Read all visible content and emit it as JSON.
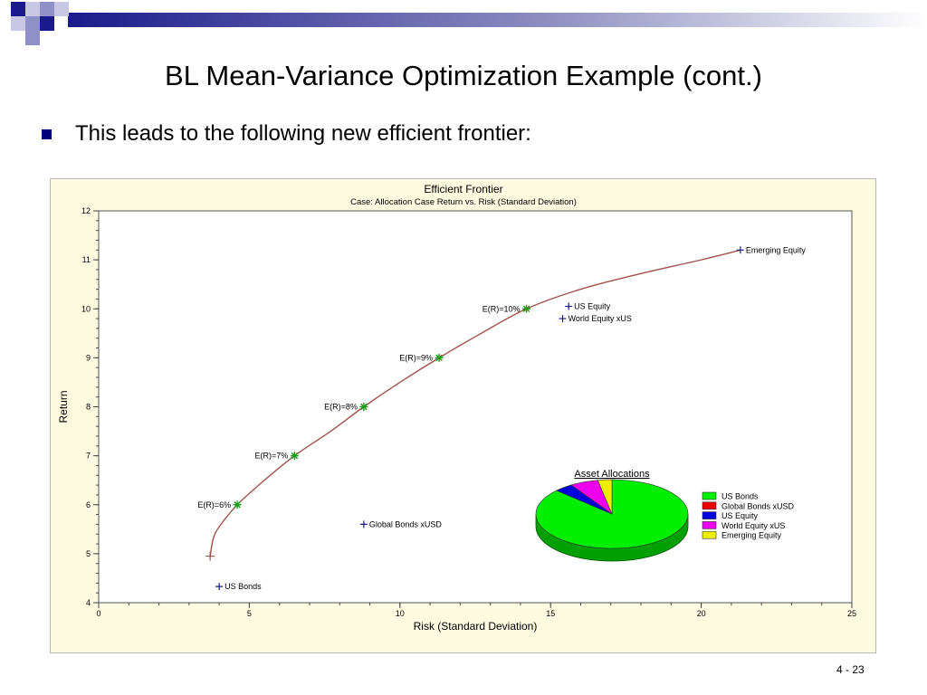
{
  "slide": {
    "title": "BL Mean-Variance Optimization Example (cont.)",
    "bullet": "This leads to the following new efficient frontier:",
    "page_number": "4 - 23"
  },
  "chart_data": {
    "type": "scatter",
    "title": "Efficient Frontier",
    "subtitle": "Case: Allocation Case     Return vs. Risk (Standard Deviation)",
    "xlabel": "Risk (Standard Deviation)",
    "ylabel": "Return",
    "xlim": [
      0,
      25
    ],
    "ylim": [
      4,
      12
    ],
    "x_ticks": [
      0,
      5,
      10,
      15,
      20,
      25
    ],
    "y_ticks": [
      4,
      5,
      6,
      7,
      8,
      9,
      10,
      11,
      12
    ],
    "frontier": {
      "color": "#a0524a",
      "points": [
        [
          3.7,
          4.95
        ],
        [
          3.8,
          5.3
        ],
        [
          4.0,
          5.55
        ],
        [
          4.6,
          6.0
        ],
        [
          5.5,
          6.5
        ],
        [
          6.5,
          7.0
        ],
        [
          7.7,
          7.5
        ],
        [
          8.8,
          8.0
        ],
        [
          10.0,
          8.5
        ],
        [
          11.3,
          9.0
        ],
        [
          12.7,
          9.5
        ],
        [
          14.2,
          10.0
        ],
        [
          16.0,
          10.4
        ],
        [
          18.0,
          10.72
        ],
        [
          20.0,
          11.0
        ],
        [
          21.3,
          11.2
        ]
      ]
    },
    "target_points": [
      {
        "label": "E(R)=6%",
        "x": 4.6,
        "y": 6.0
      },
      {
        "label": "E(R)=7%",
        "x": 6.5,
        "y": 7.0
      },
      {
        "label": "E(R)=8%",
        "x": 8.8,
        "y": 8.0
      },
      {
        "label": "E(R)=9%",
        "x": 11.3,
        "y": 9.0
      },
      {
        "label": "E(R)=10%",
        "x": 14.2,
        "y": 10.0
      }
    ],
    "assets": [
      {
        "label": "US Bonds",
        "x": 4.0,
        "y": 4.33
      },
      {
        "label": "Global Bonds xUSD",
        "x": 8.8,
        "y": 5.6
      },
      {
        "label": "US Equity",
        "x": 15.6,
        "y": 10.05
      },
      {
        "label": "World Equity xUS",
        "x": 15.4,
        "y": 9.8
      },
      {
        "label": "Emerging Equity",
        "x": 21.3,
        "y": 11.2
      }
    ],
    "min_variance_point": {
      "x": 3.7,
      "y": 4.95
    },
    "colors": {
      "asset_marker": "#1a1a8c",
      "target_marker": "#1a9e1a",
      "frontier": "#a0524a"
    },
    "pie": {
      "title": "Asset Allocations",
      "slices": [
        {
          "name": "US Bonds",
          "value": 87,
          "color": "#00ee00"
        },
        {
          "name": "Global Bonds xUSD",
          "value": 0,
          "color": "#ee0000"
        },
        {
          "name": "US Equity",
          "value": 4,
          "color": "#0000dd"
        },
        {
          "name": "World Equity xUS",
          "value": 6,
          "color": "#ee00ee"
        },
        {
          "name": "Emerging Equity",
          "value": 3,
          "color": "#eeee00"
        }
      ]
    }
  }
}
